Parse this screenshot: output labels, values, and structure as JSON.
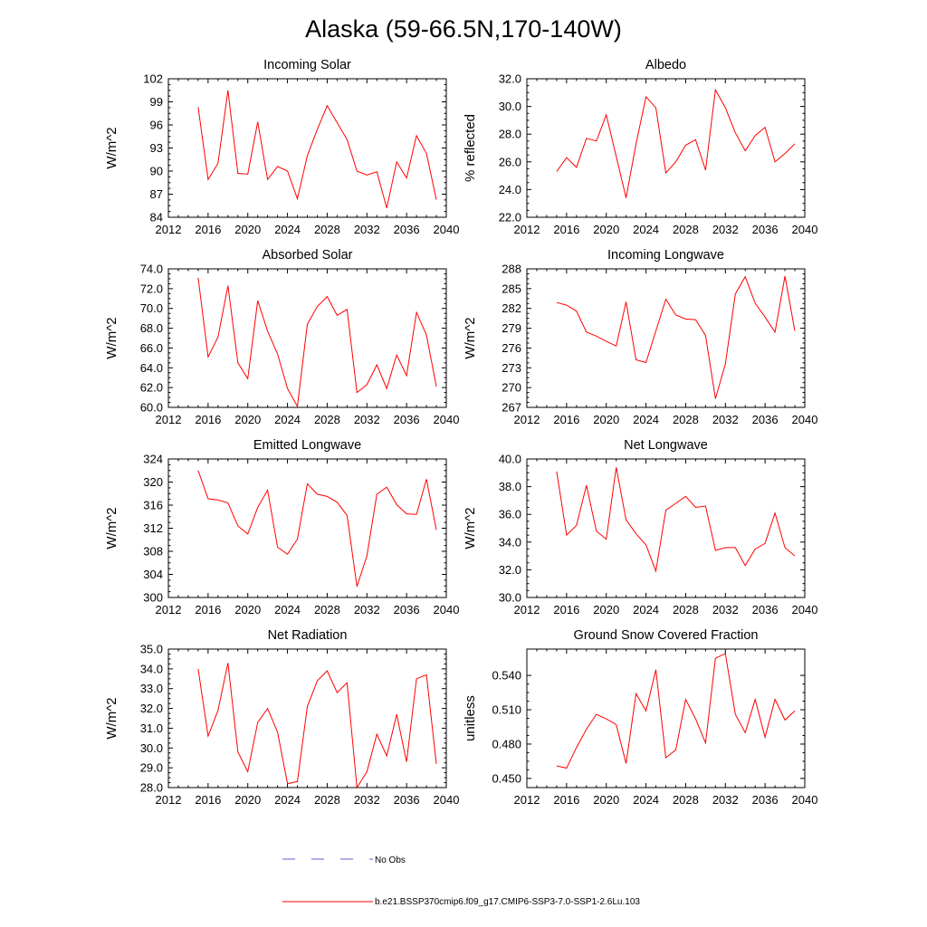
{
  "title": "Alaska (59-66.5N,170-140W)",
  "colors": {
    "model_line": "#ff0000",
    "obs_line": "#6a5acd",
    "axis": "#000000"
  },
  "legend": {
    "obs_label": "No Obs",
    "model_label": "b.e21.BSSP370cmip6.f09_g17.CMIP6-SSP3-7.0-SSP1-2.6Lu.103"
  },
  "chart_data": [
    {
      "type": "line",
      "title": "Incoming Solar",
      "ylabel": "W/m^2",
      "xlim": [
        2012,
        2040
      ],
      "ylim": [
        84,
        102
      ],
      "xticks": [
        "2012",
        "2016",
        "2020",
        "2024",
        "2028",
        "2032",
        "2036",
        "2040"
      ],
      "yticks": [
        "84",
        "87",
        "90",
        "93",
        "96",
        "99",
        "102"
      ],
      "x": [
        2015,
        2016,
        2017,
        2018,
        2019,
        2020,
        2021,
        2022,
        2023,
        2024,
        2025,
        2026,
        2027,
        2028,
        2029,
        2030,
        2031,
        2032,
        2033,
        2034,
        2035,
        2036,
        2037,
        2038,
        2039
      ],
      "series": [
        {
          "values": [
            98.3,
            88.9,
            91.0,
            100.5,
            89.7,
            89.6,
            96.4,
            88.9,
            90.6,
            90.0,
            86.4,
            92.0,
            95.4,
            98.5,
            96.3,
            94.1,
            90.0,
            89.5,
            89.9,
            85.2,
            91.2,
            89.1,
            94.6,
            92.3,
            86.3
          ]
        }
      ]
    },
    {
      "type": "line",
      "title": "Albedo",
      "ylabel": "% reflected",
      "xlim": [
        2012,
        2040
      ],
      "ylim": [
        22.0,
        32.0
      ],
      "xticks": [
        "2012",
        "2016",
        "2020",
        "2024",
        "2028",
        "2032",
        "2036",
        "2040"
      ],
      "yticks": [
        "22.0",
        "24.0",
        "26.0",
        "28.0",
        "30.0",
        "32.0"
      ],
      "x": [
        2015,
        2016,
        2017,
        2018,
        2019,
        2020,
        2021,
        2022,
        2023,
        2024,
        2025,
        2026,
        2027,
        2028,
        2029,
        2030,
        2031,
        2032,
        2033,
        2034,
        2035,
        2036,
        2037,
        2038,
        2039
      ],
      "series": [
        {
          "values": [
            25.3,
            26.3,
            25.6,
            27.7,
            27.5,
            29.4,
            26.4,
            23.4,
            27.3,
            30.7,
            29.9,
            25.2,
            26.0,
            27.2,
            27.6,
            25.4,
            31.2,
            29.9,
            28.1,
            26.8,
            27.9,
            28.5,
            26.0,
            26.6,
            27.3
          ]
        }
      ]
    },
    {
      "type": "line",
      "title": "Absorbed Solar",
      "ylabel": "W/m^2",
      "xlim": [
        2012,
        2040
      ],
      "ylim": [
        60.0,
        74.0
      ],
      "xticks": [
        "2012",
        "2016",
        "2020",
        "2024",
        "2028",
        "2032",
        "2036",
        "2040"
      ],
      "yticks": [
        "60.0",
        "62.0",
        "64.0",
        "66.0",
        "68.0",
        "70.0",
        "72.0",
        "74.0"
      ],
      "x": [
        2015,
        2016,
        2017,
        2018,
        2019,
        2020,
        2021,
        2022,
        2023,
        2024,
        2025,
        2026,
        2027,
        2028,
        2029,
        2030,
        2031,
        2032,
        2033,
        2034,
        2035,
        2036,
        2037,
        2038,
        2039
      ],
      "series": [
        {
          "values": [
            73.1,
            65.1,
            67.1,
            72.3,
            64.5,
            62.9,
            70.8,
            67.7,
            65.4,
            61.9,
            60.1,
            68.4,
            70.2,
            71.2,
            69.3,
            69.9,
            61.5,
            62.3,
            64.3,
            61.9,
            65.3,
            63.2,
            69.6,
            67.3,
            62.1
          ]
        }
      ]
    },
    {
      "type": "line",
      "title": "Incoming Longwave",
      "ylabel": "W/m^2",
      "xlim": [
        2012,
        2040
      ],
      "ylim": [
        267,
        288
      ],
      "xticks": [
        "2012",
        "2016",
        "2020",
        "2024",
        "2028",
        "2032",
        "2036",
        "2040"
      ],
      "yticks": [
        "267",
        "270",
        "273",
        "276",
        "279",
        "282",
        "285",
        "288"
      ],
      "x": [
        2015,
        2016,
        2017,
        2018,
        2019,
        2020,
        2021,
        2022,
        2023,
        2024,
        2025,
        2026,
        2027,
        2028,
        2029,
        2030,
        2031,
        2032,
        2033,
        2034,
        2035,
        2036,
        2037,
        2038,
        2039
      ],
      "series": [
        {
          "values": [
            282.9,
            282.5,
            281.6,
            278.4,
            277.8,
            277.0,
            276.3,
            283.0,
            274.2,
            273.8,
            278.6,
            283.4,
            281.0,
            280.4,
            280.3,
            277.9,
            268.3,
            273.6,
            284.2,
            286.8,
            282.8,
            280.7,
            278.4,
            286.9,
            278.6
          ]
        }
      ]
    },
    {
      "type": "line",
      "title": "Emitted Longwave",
      "ylabel": "W/m^2",
      "xlim": [
        2012,
        2040
      ],
      "ylim": [
        300,
        324
      ],
      "xticks": [
        "2012",
        "2016",
        "2020",
        "2024",
        "2028",
        "2032",
        "2036",
        "2040"
      ],
      "yticks": [
        "300",
        "304",
        "308",
        "312",
        "316",
        "320",
        "324"
      ],
      "x": [
        2015,
        2016,
        2017,
        2018,
        2019,
        2020,
        2021,
        2022,
        2023,
        2024,
        2025,
        2026,
        2027,
        2028,
        2029,
        2030,
        2031,
        2032,
        2033,
        2034,
        2035,
        2036,
        2037,
        2038,
        2039
      ],
      "series": [
        {
          "values": [
            322.0,
            317.1,
            316.9,
            316.4,
            312.4,
            311.0,
            315.6,
            318.6,
            308.7,
            307.5,
            310.1,
            319.7,
            317.9,
            317.5,
            316.5,
            314.2,
            301.9,
            307.2,
            317.9,
            319.1,
            316.1,
            314.5,
            314.4,
            320.5,
            311.7
          ]
        }
      ]
    },
    {
      "type": "line",
      "title": "Net Longwave",
      "ylabel": "W/m^2",
      "xlim": [
        2012,
        2040
      ],
      "ylim": [
        30.0,
        40.0
      ],
      "xticks": [
        "2012",
        "2016",
        "2020",
        "2024",
        "2028",
        "2032",
        "2036",
        "2040"
      ],
      "yticks": [
        "30.0",
        "32.0",
        "34.0",
        "36.0",
        "38.0",
        "40.0"
      ],
      "x": [
        2015,
        2016,
        2017,
        2018,
        2019,
        2020,
        2021,
        2022,
        2023,
        2024,
        2025,
        2026,
        2027,
        2028,
        2029,
        2030,
        2031,
        2032,
        2033,
        2034,
        2035,
        2036,
        2037,
        2038,
        2039
      ],
      "series": [
        {
          "values": [
            39.1,
            34.5,
            35.2,
            38.1,
            34.8,
            34.2,
            39.4,
            35.6,
            34.6,
            33.8,
            31.9,
            36.3,
            36.8,
            37.3,
            36.5,
            36.6,
            33.4,
            33.6,
            33.6,
            32.3,
            33.5,
            33.9,
            36.1,
            33.6,
            33.0
          ]
        }
      ]
    },
    {
      "type": "line",
      "title": "Net Radiation",
      "ylabel": "W/m^2",
      "xlim": [
        2012,
        2040
      ],
      "ylim": [
        28.0,
        35.0
      ],
      "xticks": [
        "2012",
        "2016",
        "2020",
        "2024",
        "2028",
        "2032",
        "2036",
        "2040"
      ],
      "yticks": [
        "28.0",
        "29.0",
        "30.0",
        "31.0",
        "32.0",
        "33.0",
        "34.0",
        "35.0"
      ],
      "x": [
        2015,
        2016,
        2017,
        2018,
        2019,
        2020,
        2021,
        2022,
        2023,
        2024,
        2025,
        2026,
        2027,
        2028,
        2029,
        2030,
        2031,
        2032,
        2033,
        2034,
        2035,
        2036,
        2037,
        2038,
        2039
      ],
      "series": [
        {
          "values": [
            34.0,
            30.6,
            31.9,
            34.3,
            29.8,
            28.8,
            31.3,
            32.0,
            30.8,
            28.2,
            28.3,
            32.1,
            33.4,
            33.9,
            32.8,
            33.3,
            28.0,
            28.8,
            30.7,
            29.6,
            31.7,
            29.3,
            33.5,
            33.7,
            29.2
          ]
        }
      ]
    },
    {
      "type": "line",
      "title": "Ground Snow Covered Fraction",
      "ylabel": "unitless",
      "xlim": [
        2012,
        2040
      ],
      "ylim": [
        0.442,
        0.563
      ],
      "xticks": [
        "2012",
        "2016",
        "2020",
        "2024",
        "2028",
        "2032",
        "2036",
        "2040"
      ],
      "yticks": [
        "0.450",
        "0.480",
        "0.510",
        "0.540"
      ],
      "ytick_values": [
        0.45,
        0.48,
        0.51,
        0.54
      ],
      "x": [
        2015,
        2016,
        2017,
        2018,
        2019,
        2020,
        2021,
        2022,
        2023,
        2024,
        2025,
        2026,
        2027,
        2028,
        2029,
        2030,
        2031,
        2032,
        2033,
        2034,
        2035,
        2036,
        2037,
        2038,
        2039
      ],
      "series": [
        {
          "values": [
            0.461,
            0.459,
            0.477,
            0.493,
            0.506,
            0.502,
            0.497,
            0.463,
            0.524,
            0.509,
            0.545,
            0.468,
            0.475,
            0.519,
            0.502,
            0.481,
            0.555,
            0.559,
            0.506,
            0.49,
            0.519,
            0.486,
            0.519,
            0.501,
            0.509
          ]
        }
      ]
    }
  ]
}
